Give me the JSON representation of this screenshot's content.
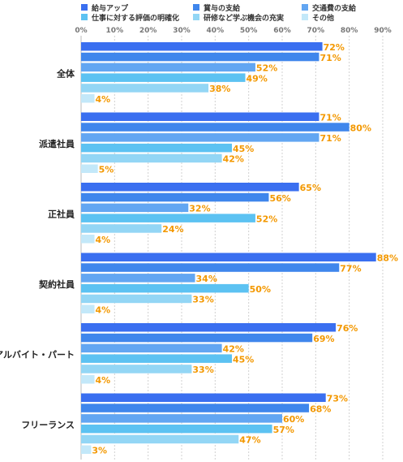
{
  "chart_data": {
    "type": "bar",
    "orientation": "horizontal",
    "title": "",
    "xlabel": "",
    "ylabel": "",
    "xlim": [
      0,
      90
    ],
    "x_ticks": [
      "0%",
      "10%",
      "20%",
      "30%",
      "40%",
      "50%",
      "60%",
      "70%",
      "80%",
      "90%"
    ],
    "grid": true,
    "legend_position": "top",
    "value_suffix": "%",
    "value_label_color": "#f39800",
    "categories": [
      "全体",
      "派遣社員",
      "正社員",
      "契約社員",
      "アルバイト・パート",
      "フリーランス"
    ],
    "series": [
      {
        "name": "給与アップ",
        "color": "#3a6ff0",
        "values": [
          72,
          71,
          65,
          88,
          76,
          73
        ]
      },
      {
        "name": "賞与の支給",
        "color": "#3f86ec",
        "values": [
          71,
          80,
          56,
          77,
          69,
          68
        ]
      },
      {
        "name": "交通費の支給",
        "color": "#62a6f2",
        "values": [
          52,
          71,
          32,
          34,
          42,
          60
        ]
      },
      {
        "name": "仕事に対する評価の明確化",
        "color": "#5cc2f2",
        "values": [
          49,
          45,
          52,
          50,
          45,
          57
        ]
      },
      {
        "name": "研修など学ぶ機会の充実",
        "color": "#93d6f5",
        "values": [
          38,
          42,
          24,
          33,
          33,
          47
        ]
      },
      {
        "name": "その他",
        "color": "#c3e8f9",
        "values": [
          4,
          5,
          4,
          4,
          4,
          3
        ]
      }
    ]
  }
}
